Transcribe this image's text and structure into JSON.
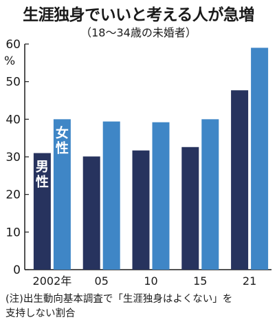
{
  "chart_data": {
    "type": "bar",
    "title": "生涯独身でいいと考える人が急増",
    "subtitle": "（18〜34歳の未婚者）",
    "unit": "%",
    "categories": [
      "2002年",
      "05",
      "10",
      "15",
      "21"
    ],
    "series": [
      {
        "name": "男性",
        "values": [
          31,
          30.1,
          31.7,
          32.6,
          47.7
        ],
        "color": "#27335e"
      },
      {
        "name": "女性",
        "values": [
          40,
          39.4,
          39.2,
          40,
          59
        ],
        "color": "#3f86c6"
      }
    ],
    "ylim": [
      0,
      60
    ],
    "yticks": [
      "0",
      "10",
      "20",
      "30",
      "40",
      "50",
      "60"
    ],
    "grid": false,
    "note_lines": [
      "(注)出生動向基本調査で「生涯独身はよくない」を",
      "支持しない割合"
    ]
  }
}
